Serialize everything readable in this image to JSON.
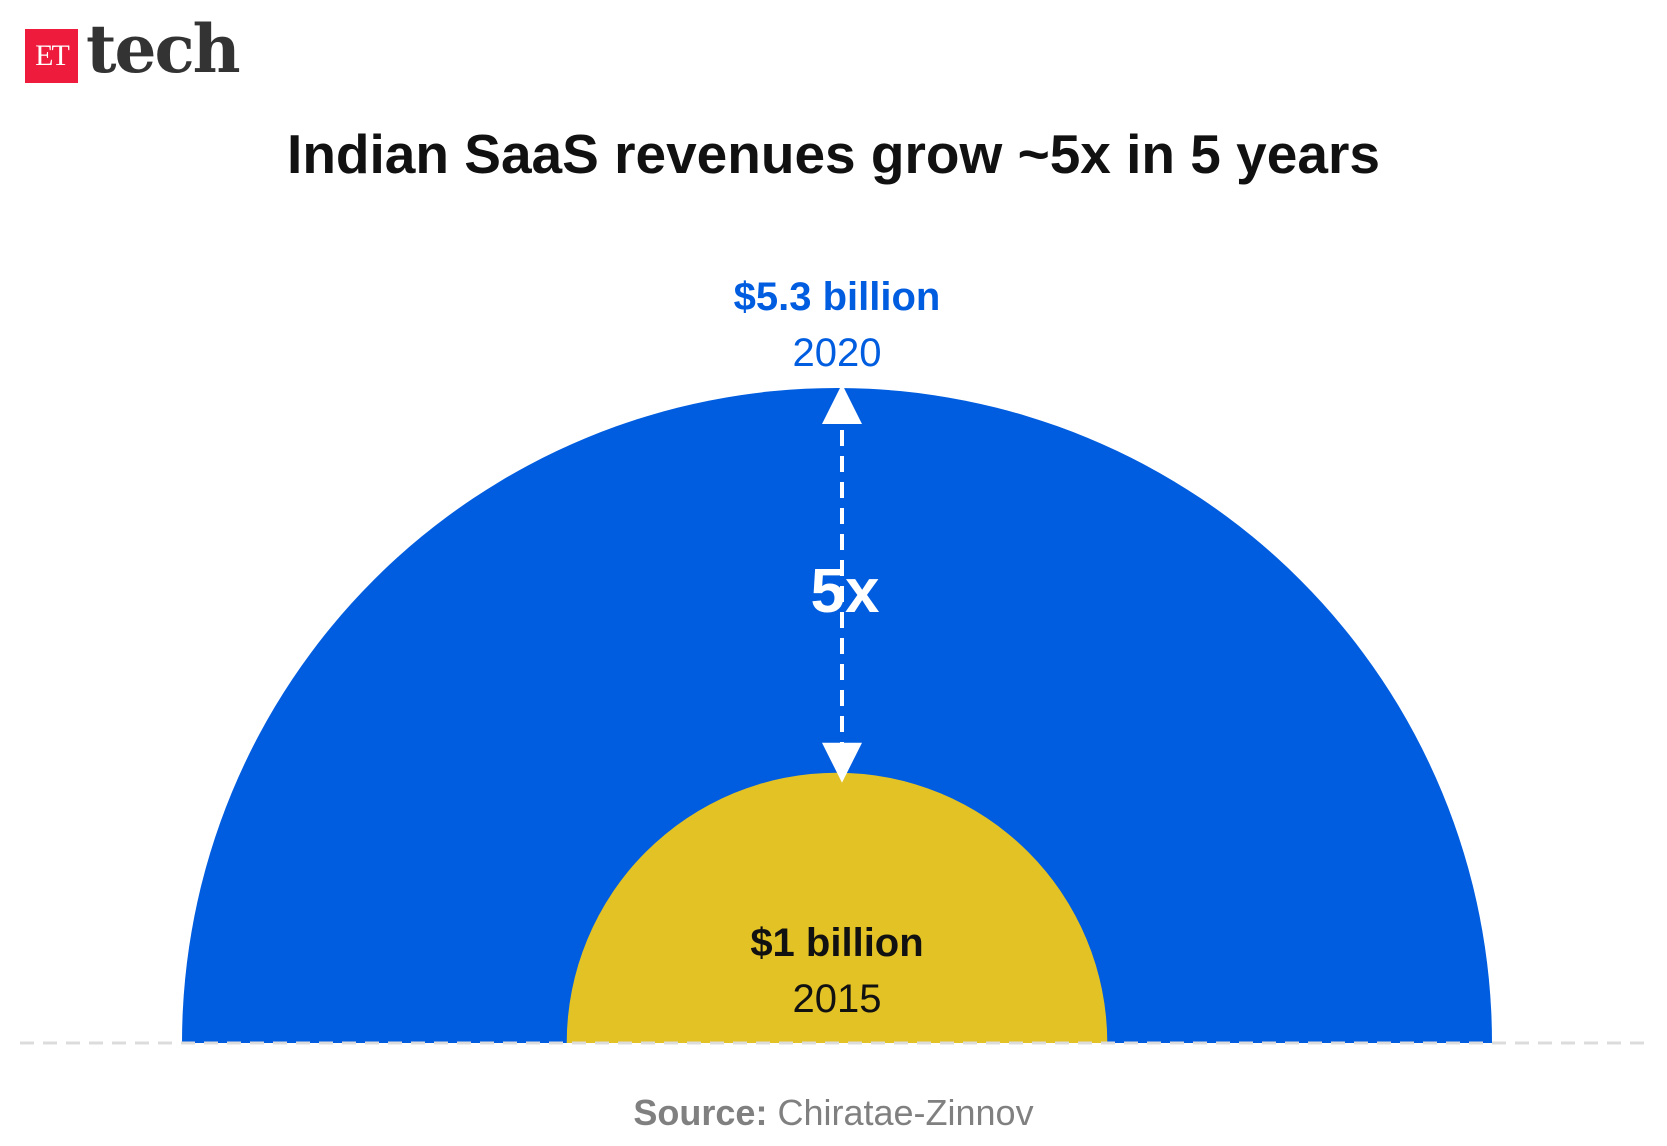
{
  "logo": {
    "et": "ET",
    "tech": "tech"
  },
  "title": "Indian SaaS revenues grow ~5x in 5 years",
  "chart_data": {
    "type": "proportional-semicircle",
    "title": "Indian SaaS revenues grow ~5x in 5 years",
    "series": [
      {
        "year": "2015",
        "value": 1,
        "label": "$1 billion",
        "color": "#e3c226"
      },
      {
        "year": "2020",
        "value": 5.3,
        "label": "$5.3 billion",
        "color": "#005de0"
      }
    ],
    "annotation": "5x"
  },
  "colors": {
    "big_label": "#005de0",
    "small_label": "#111111"
  },
  "source": {
    "label": "Source:",
    "text": "Chiratae-Zinnov"
  }
}
